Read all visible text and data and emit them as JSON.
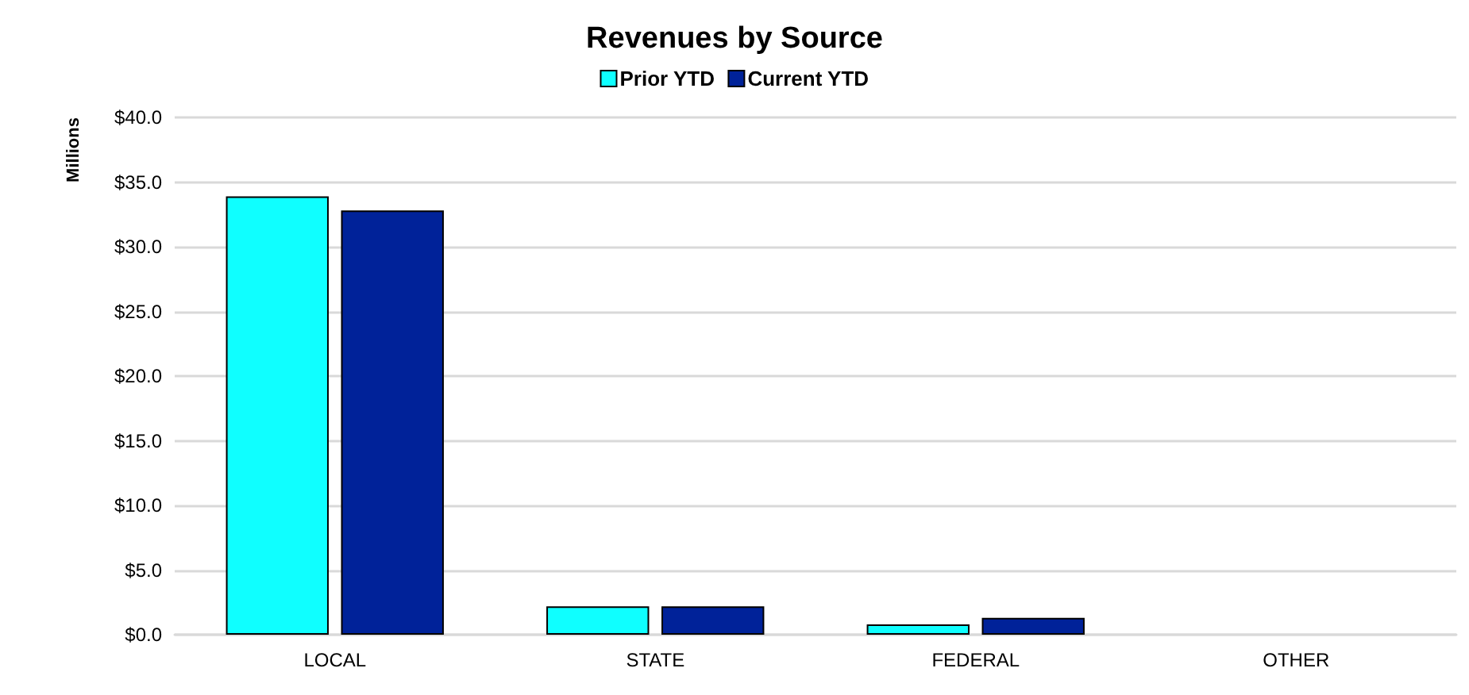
{
  "chart_data": {
    "type": "bar",
    "title": "Revenues by Source",
    "ylabel": "Millions",
    "categories": [
      "LOCAL",
      "STATE",
      "FEDERAL",
      "OTHER"
    ],
    "series": [
      {
        "name": "Prior YTD",
        "color": "#0fffff",
        "values": [
          33.9,
          2.2,
          0.8,
          0
        ]
      },
      {
        "name": "Current YTD",
        "color": "#002299",
        "values": [
          32.8,
          2.2,
          1.3,
          0
        ]
      }
    ],
    "ylim": [
      0,
      40
    ],
    "yticks": [
      {
        "value": 0,
        "label": "$0.0"
      },
      {
        "value": 5,
        "label": "$5.0"
      },
      {
        "value": 10,
        "label": "$10.0"
      },
      {
        "value": 15,
        "label": "$15.0"
      },
      {
        "value": 20,
        "label": "$20.0"
      },
      {
        "value": 25,
        "label": "$25.0"
      },
      {
        "value": 30,
        "label": "$30.0"
      },
      {
        "value": 35,
        "label": "$35.0"
      },
      {
        "value": 40,
        "label": "$40.0"
      }
    ],
    "grid": "y",
    "legend": "top"
  }
}
